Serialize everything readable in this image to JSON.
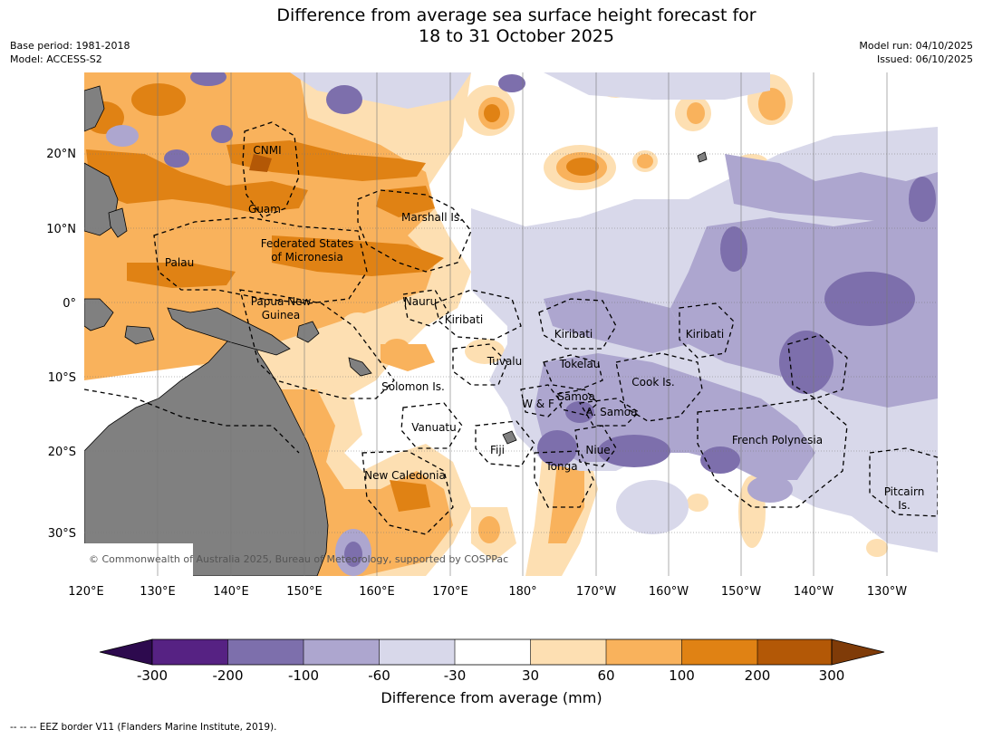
{
  "header": {
    "title_line1": "Difference from average sea surface height forecast for",
    "title_line2": "18 to 31 October 2025",
    "base_period": "Base period: 1981-2018",
    "model": "Model: ACCESS-S2",
    "model_run": "Model run: 04/10/2025",
    "issued": "Issued: 06/10/2025"
  },
  "map": {
    "lat_labels": [
      "20°N",
      "10°N",
      "0°",
      "10°S",
      "20°S",
      "30°S"
    ],
    "lon_labels": [
      "120°E",
      "130°E",
      "140°E",
      "150°E",
      "160°E",
      "170°E",
      "180°",
      "170°W",
      "160°W",
      "150°W",
      "140°W",
      "130°W"
    ],
    "copyright": "© Commonwealth of Australia 2025, Bureau of Meteorology, supported by COSPPac",
    "regions": [
      "CNMI",
      "Guam",
      "Marshall Is.",
      "Federated States",
      "of Micronesia",
      "Palau",
      "Papua New",
      "Guinea",
      "Nauru",
      "Kiribati",
      "Kiribati",
      "Kiribati",
      "Tuvalu",
      "Tokelau",
      "Solomon Is.",
      "Cook Is.",
      "W & F",
      "Samoa",
      "A. Samoa",
      "Vanuatu",
      "Fiji",
      "Niue",
      "French Polynesia",
      "Tonga",
      "New Caledonia",
      "Pitcairn",
      "Is."
    ]
  },
  "colorbar": {
    "levels": [
      "-300",
      "-200",
      "-100",
      "-60",
      "-30",
      "30",
      "60",
      "100",
      "200",
      "300"
    ],
    "colors": [
      "#2d0a4e",
      "#562283",
      "#7d6fac",
      "#ada6cf",
      "#d8d8ea",
      "#ffffff",
      "#fddfb2",
      "#f9b25c",
      "#e08214",
      "#b35806",
      "#7f3b08"
    ],
    "label": "Difference from average (mm)"
  },
  "footnote": "--  --  -- EEZ border V11 (Flanders Marine Institute, 2019)."
}
